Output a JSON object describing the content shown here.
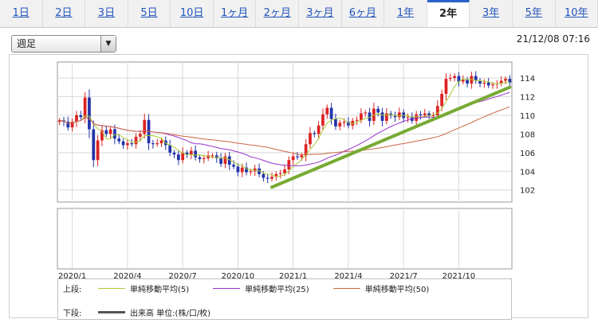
{
  "tabs": [
    {
      "label": "1日",
      "active": false
    },
    {
      "label": "2日",
      "active": false
    },
    {
      "label": "3日",
      "active": false
    },
    {
      "label": "5日",
      "active": false
    },
    {
      "label": "10日",
      "active": false
    },
    {
      "label": "1ヶ月",
      "active": false
    },
    {
      "label": "2ヶ月",
      "active": false
    },
    {
      "label": "3ヶ月",
      "active": false
    },
    {
      "label": "6ヶ月",
      "active": false
    },
    {
      "label": "1年",
      "active": false
    },
    {
      "label": "2年",
      "active": true
    },
    {
      "label": "3年",
      "active": false
    },
    {
      "label": "5年",
      "active": false
    },
    {
      "label": "10年",
      "active": false
    }
  ],
  "period_select": {
    "value": "週足",
    "arrow_icon": "triangle-down-icon"
  },
  "timestamp": "21/12/08 07:16",
  "chart_data": {
    "type": "candlestick",
    "y_ticks": [
      102,
      104,
      106,
      108,
      110,
      112,
      114
    ],
    "ylim": [
      100.7,
      115.7
    ],
    "x_tick_labels": [
      "2020/1",
      "2020/4",
      "2020/7",
      "2020/10",
      "2021/1",
      "2021/4",
      "2021/7",
      "2021/10"
    ],
    "x_tick_positions": [
      3,
      16,
      29,
      42,
      55,
      68,
      81,
      94
    ],
    "n_weeks": 107,
    "colors": {
      "up": "#dd2222",
      "down": "#2233aa",
      "ma5": "#aacc33",
      "ma25": "#9933cc",
      "ma50": "#cc6644",
      "trend": "#77aa33"
    },
    "weekly_close": [
      109.45,
      109.3,
      108.7,
      109.3,
      110.0,
      109.8,
      111.9,
      108.5,
      105.2,
      107.3,
      108.4,
      108.0,
      108.5,
      107.5,
      107.2,
      106.8,
      107.0,
      106.9,
      107.7,
      108.0,
      109.5,
      107.0,
      106.9,
      107.0,
      107.3,
      106.8,
      106.0,
      105.8,
      105.2,
      106.0,
      105.8,
      106.2,
      105.5,
      105.3,
      105.4,
      105.7,
      105.7,
      105.4,
      104.8,
      105.6,
      104.7,
      104.5,
      103.9,
      104.4,
      103.9,
      104.0,
      104.3,
      103.7,
      103.3,
      103.2,
      103.4,
      103.7,
      103.8,
      104.2,
      105.2,
      105.6,
      105.5,
      105.7,
      106.9,
      108.1,
      108.0,
      108.9,
      110.1,
      110.8,
      109.6,
      108.8,
      109.2,
      109.3,
      108.9,
      109.4,
      109.5,
      110.2,
      110.3,
      109.4,
      110.7,
      110.3,
      109.4,
      110.2,
      110.0,
      109.8,
      110.3,
      109.7,
      109.8,
      109.4,
      110.1,
      110.0,
      110.2,
      110.0,
      110.0,
      111.0,
      112.3,
      113.9,
      114.0,
      114.2,
      113.6,
      113.8,
      113.4,
      114.2,
      113.7,
      113.4,
      113.5,
      113.2,
      113.3,
      113.4,
      113.7,
      113.9,
      113.5
    ],
    "moving_averages": [
      {
        "name": "単純移動平均(5)",
        "period": 5
      },
      {
        "name": "単純移動平均(25)",
        "period": 25
      },
      {
        "name": "単純移動平均(50)",
        "period": 50
      }
    ],
    "trendline": {
      "from": {
        "week": 50,
        "value": 102.3
      },
      "to": {
        "week": 106,
        "value": 113.0
      }
    }
  },
  "legend": {
    "upper_label": "上段:",
    "lower_label": "下段:",
    "items": [
      {
        "name": "単純移動平均(5)",
        "color": "#aacc33"
      },
      {
        "name": "単純移動平均(25)",
        "color": "#9933cc"
      },
      {
        "name": "単純移動平均(50)",
        "color": "#cc6644"
      }
    ],
    "volume": {
      "name": "出来高 単位:(株/口/枚)",
      "color": "#555555"
    }
  }
}
